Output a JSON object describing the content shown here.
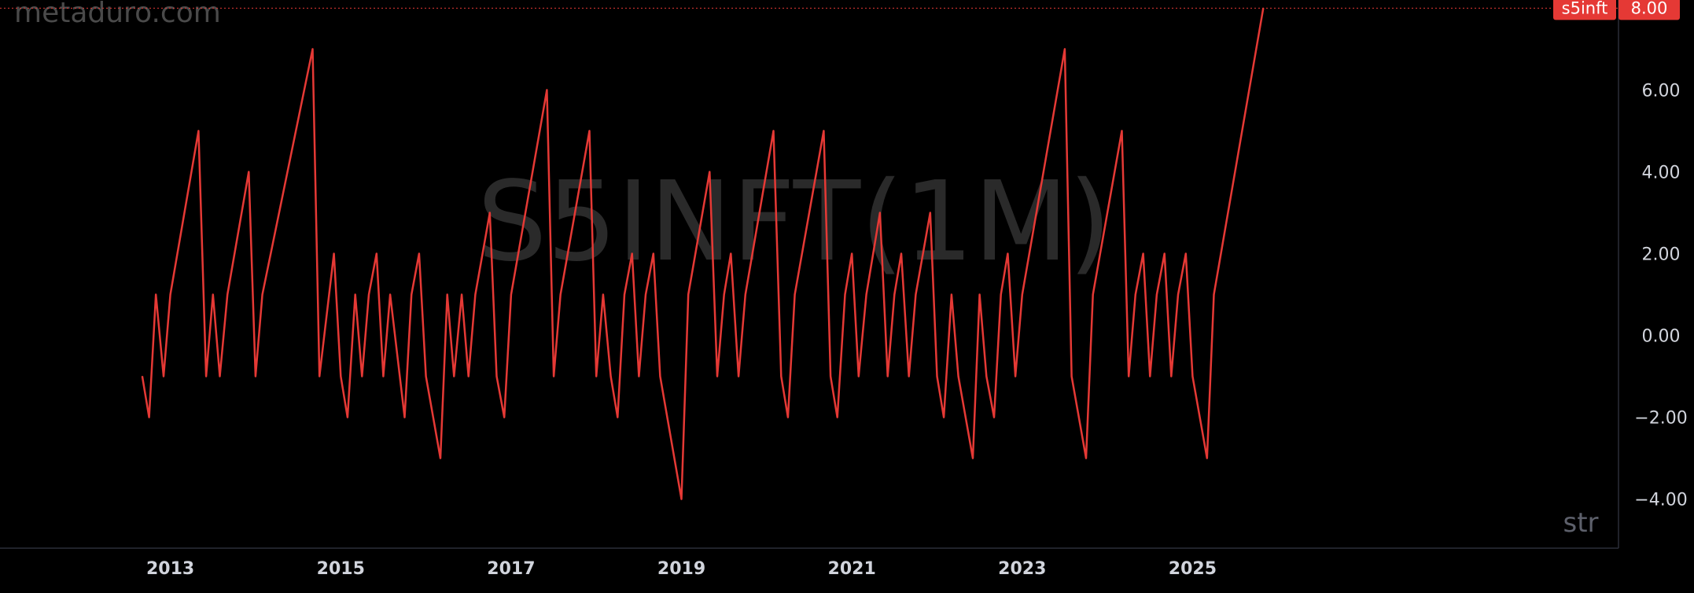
{
  "watermark_site": "metaduro.com",
  "watermark_symbol": "S5INFT(1M)",
  "corner_label": "str",
  "colors": {
    "background": "#000000",
    "line": "#e53935",
    "badge": "#e53935",
    "axis_text": "#d1d4dc",
    "watermark": "#2a2a2a",
    "site_text": "#4a4a4a",
    "axis_border": "#2a2e39"
  },
  "price_badge": {
    "symbol": "s5inft",
    "value": "8.00"
  },
  "chart_data": {
    "type": "line",
    "title": "",
    "xlabel": "",
    "ylabel": "",
    "ylim": [
      -5.2,
      8.2
    ],
    "yticks": [
      {
        "value": 6,
        "label": "6.00"
      },
      {
        "value": 4,
        "label": "4.00"
      },
      {
        "value": 2,
        "label": "2.00"
      },
      {
        "value": 0,
        "label": "0.00"
      },
      {
        "value": -2,
        "label": "−2.00"
      },
      {
        "value": -4,
        "label": "−4.00"
      }
    ],
    "xrange": [
      2011.0,
      2030.0
    ],
    "xticks": [
      {
        "value": 2013.0,
        "label": "2013"
      },
      {
        "value": 2015.0,
        "label": "2015"
      },
      {
        "value": 2017.0,
        "label": "2017"
      },
      {
        "value": 2019.0,
        "label": "2019"
      },
      {
        "value": 2021.0,
        "label": "2021"
      },
      {
        "value": 2023.0,
        "label": "2023"
      },
      {
        "value": 2025.0,
        "label": "2025"
      }
    ],
    "last_value": 8,
    "series": [
      {
        "values": [
          [
            2012.67,
            -1
          ],
          [
            2012.75,
            -2
          ],
          [
            2012.83,
            1
          ],
          [
            2012.92,
            -1
          ],
          [
            2013.0,
            1
          ],
          [
            2013.33,
            5
          ],
          [
            2013.42,
            -1
          ],
          [
            2013.5,
            1
          ],
          [
            2013.58,
            -1
          ],
          [
            2013.67,
            1
          ],
          [
            2013.92,
            4
          ],
          [
            2014.0,
            -1
          ],
          [
            2014.08,
            1
          ],
          [
            2014.67,
            7
          ],
          [
            2014.75,
            -1
          ],
          [
            2014.92,
            2
          ],
          [
            2015.0,
            -1
          ],
          [
            2015.08,
            -2
          ],
          [
            2015.17,
            1
          ],
          [
            2015.25,
            -1
          ],
          [
            2015.33,
            1
          ],
          [
            2015.42,
            2
          ],
          [
            2015.5,
            -1
          ],
          [
            2015.58,
            1
          ],
          [
            2015.75,
            -2
          ],
          [
            2015.83,
            1
          ],
          [
            2015.92,
            2
          ],
          [
            2016.0,
            -1
          ],
          [
            2016.17,
            -3
          ],
          [
            2016.25,
            1
          ],
          [
            2016.33,
            -1
          ],
          [
            2016.42,
            1
          ],
          [
            2016.5,
            -1
          ],
          [
            2016.58,
            1
          ],
          [
            2016.75,
            3
          ],
          [
            2016.83,
            -1
          ],
          [
            2016.92,
            -2
          ],
          [
            2017.0,
            1
          ],
          [
            2017.42,
            6
          ],
          [
            2017.5,
            -1
          ],
          [
            2017.58,
            1
          ],
          [
            2017.92,
            5
          ],
          [
            2018.0,
            -1
          ],
          [
            2018.08,
            1
          ],
          [
            2018.17,
            -1
          ],
          [
            2018.25,
            -2
          ],
          [
            2018.33,
            1
          ],
          [
            2018.42,
            2
          ],
          [
            2018.5,
            -1
          ],
          [
            2018.58,
            1
          ],
          [
            2018.67,
            2
          ],
          [
            2018.75,
            -1
          ],
          [
            2019.0,
            -4
          ],
          [
            2019.08,
            1
          ],
          [
            2019.33,
            4
          ],
          [
            2019.42,
            -1
          ],
          [
            2019.5,
            1
          ],
          [
            2019.58,
            2
          ],
          [
            2019.67,
            -1
          ],
          [
            2019.75,
            1
          ],
          [
            2020.08,
            5
          ],
          [
            2020.17,
            -1
          ],
          [
            2020.25,
            -2
          ],
          [
            2020.33,
            1
          ],
          [
            2020.67,
            5
          ],
          [
            2020.75,
            -1
          ],
          [
            2020.83,
            -2
          ],
          [
            2020.92,
            1
          ],
          [
            2021.0,
            2
          ],
          [
            2021.08,
            -1
          ],
          [
            2021.17,
            1
          ],
          [
            2021.33,
            3
          ],
          [
            2021.42,
            -1
          ],
          [
            2021.5,
            1
          ],
          [
            2021.58,
            2
          ],
          [
            2021.67,
            -1
          ],
          [
            2021.75,
            1
          ],
          [
            2021.92,
            3
          ],
          [
            2022.0,
            -1
          ],
          [
            2022.08,
            -2
          ],
          [
            2022.17,
            1
          ],
          [
            2022.25,
            -1
          ],
          [
            2022.42,
            -3
          ],
          [
            2022.5,
            1
          ],
          [
            2022.58,
            -1
          ],
          [
            2022.67,
            -2
          ],
          [
            2022.75,
            1
          ],
          [
            2022.83,
            2
          ],
          [
            2022.92,
            -1
          ],
          [
            2023.0,
            1
          ],
          [
            2023.5,
            7
          ],
          [
            2023.58,
            -1
          ],
          [
            2023.75,
            -3
          ],
          [
            2023.83,
            1
          ],
          [
            2024.17,
            5
          ],
          [
            2024.25,
            -1
          ],
          [
            2024.33,
            1
          ],
          [
            2024.42,
            2
          ],
          [
            2024.5,
            -1
          ],
          [
            2024.58,
            1
          ],
          [
            2024.67,
            2
          ],
          [
            2024.75,
            -1
          ],
          [
            2024.83,
            1
          ],
          [
            2024.92,
            2
          ],
          [
            2025.0,
            -1
          ],
          [
            2025.17,
            -3
          ],
          [
            2025.25,
            1
          ],
          [
            2025.83,
            8
          ]
        ]
      }
    ]
  }
}
